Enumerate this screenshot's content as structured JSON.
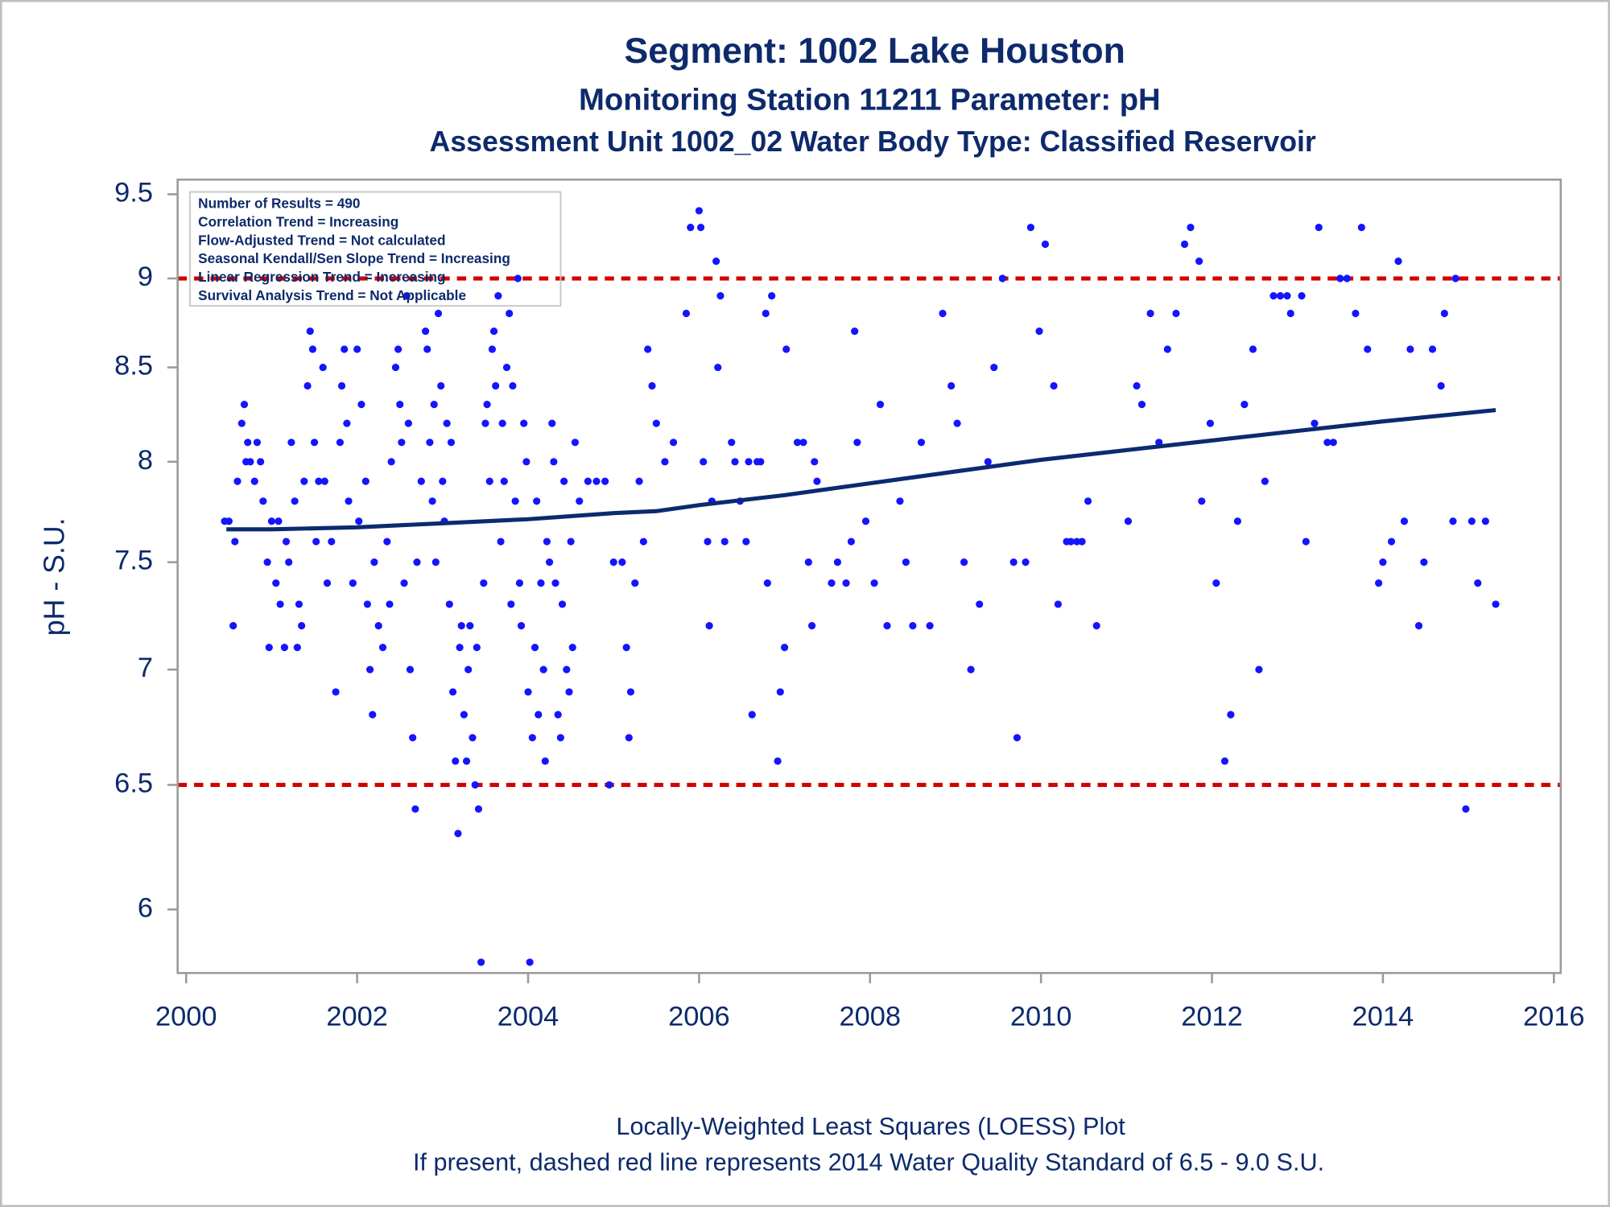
{
  "chart_data": {
    "type": "scatter",
    "title": "Segment: 1002  Lake Houston",
    "subtitle": "Monitoring Station 11211 Parameter: pH",
    "subtitle2": "Assessment Unit 1002_02   Water Body Type: Classified Reservoir",
    "y_label": "pH - S.U.",
    "footnotes": [
      "Locally-Weighted Least Squares (LOESS) Plot",
      "If present, dashed red line represents 2014 Water Quality Standard of 6.5 - 9.0 S.U."
    ],
    "annotations": [
      "Number of Results = 490",
      "Correlation Trend = Increasing",
      "Flow-Adjusted Trend = Not calculated",
      "Seasonal Kendall/Sen Slope Trend = Increasing",
      "Linear Regression Trend = Increasing",
      "Survival Analysis Trend = Not Applicable"
    ],
    "ylog": true,
    "xlim": [
      1999.9,
      2016.08
    ],
    "xticks": [
      2000,
      2002,
      2004,
      2006,
      2008,
      2010,
      2012,
      2014,
      2016
    ],
    "ylim": [
      5.76,
      9.59
    ],
    "yticks": [
      6,
      6.5,
      7,
      7.5,
      8,
      8.5,
      9,
      9.5
    ],
    "color": "#1414ff",
    "x": [
      2000.45,
      2000.5,
      2000.55,
      2000.57,
      2000.6,
      2000.65,
      2000.68,
      2000.7,
      2000.72,
      2000.75,
      2000.8,
      2000.83,
      2000.87,
      2000.9,
      2000.95,
      2000.97,
      2001.0,
      2001.05,
      2001.08,
      2001.1,
      2001.15,
      2001.17,
      2001.2,
      2001.23,
      2001.27,
      2001.3,
      2001.32,
      2001.35,
      2001.38,
      2001.42,
      2001.45,
      2001.48,
      2001.5,
      2001.52,
      2001.55,
      2001.6,
      2001.62,
      2001.65,
      2001.7,
      2001.75,
      2001.8,
      2001.82,
      2001.85,
      2001.88,
      2001.9,
      2001.95,
      2002.0,
      2002.02,
      2002.05,
      2002.1,
      2002.12,
      2002.15,
      2002.18,
      2002.2,
      2002.25,
      2002.3,
      2002.35,
      2002.38,
      2002.4,
      2002.45,
      2002.48,
      2002.5,
      2002.52,
      2002.55,
      2002.58,
      2002.6,
      2002.62,
      2002.65,
      2002.68,
      2002.7,
      2002.75,
      2002.8,
      2002.82,
      2002.85,
      2002.88,
      2002.9,
      2002.92,
      2002.95,
      2002.98,
      2003.0,
      2003.02,
      2003.05,
      2003.08,
      2003.1,
      2003.12,
      2003.15,
      2003.18,
      2003.2,
      2003.22,
      2003.25,
      2003.28,
      2003.3,
      2003.32,
      2003.35,
      2003.38,
      2003.4,
      2003.42,
      2003.45,
      2003.48,
      2003.5,
      2003.52,
      2003.55,
      2003.58,
      2003.6,
      2003.62,
      2003.65,
      2003.68,
      2003.7,
      2003.72,
      2003.75,
      2003.78,
      2003.8,
      2003.82,
      2003.85,
      2003.88,
      2003.9,
      2003.92,
      2003.95,
      2003.98,
      2004.0,
      2004.02,
      2004.05,
      2004.08,
      2004.1,
      2004.12,
      2004.15,
      2004.18,
      2004.2,
      2004.22,
      2004.25,
      2004.28,
      2004.3,
      2004.32,
      2004.35,
      2004.38,
      2004.4,
      2004.42,
      2004.45,
      2004.48,
      2004.5,
      2004.52,
      2004.55,
      2004.6,
      2004.7,
      2004.8,
      2004.9,
      2004.95,
      2005.0,
      2005.1,
      2005.15,
      2005.18,
      2005.2,
      2005.25,
      2005.3,
      2005.35,
      2005.4,
      2005.45,
      2005.5,
      2005.6,
      2005.7,
      2005.85,
      2005.9,
      2006.0,
      2006.02,
      2006.05,
      2006.1,
      2006.12,
      2006.15,
      2006.2,
      2006.22,
      2006.25,
      2006.3,
      2006.38,
      2006.42,
      2006.48,
      2006.55,
      2006.58,
      2006.62,
      2006.68,
      2006.72,
      2006.78,
      2006.8,
      2006.85,
      2006.92,
      2006.95,
      2007.0,
      2007.02,
      2007.15,
      2007.22,
      2007.28,
      2007.32,
      2007.35,
      2007.38,
      2007.55,
      2007.62,
      2007.72,
      2007.78,
      2007.82,
      2007.85,
      2007.95,
      2008.05,
      2008.12,
      2008.2,
      2008.35,
      2008.42,
      2008.5,
      2008.6,
      2008.7,
      2008.85,
      2008.95,
      2009.02,
      2009.1,
      2009.18,
      2009.28,
      2009.38,
      2009.45,
      2009.55,
      2009.68,
      2009.72,
      2009.82,
      2009.88,
      2009.98,
      2010.05,
      2010.15,
      2010.2,
      2010.3,
      2010.35,
      2010.42,
      2010.48,
      2010.55,
      2010.65,
      2011.02,
      2011.12,
      2011.18,
      2011.28,
      2011.38,
      2011.48,
      2011.58,
      2011.68,
      2011.75,
      2011.85,
      2011.88,
      2011.98,
      2012.05,
      2012.15,
      2012.22,
      2012.3,
      2012.38,
      2012.48,
      2012.55,
      2012.62,
      2012.72,
      2012.8,
      2012.88,
      2012.92,
      2013.05,
      2013.1,
      2013.2,
      2013.25,
      2013.35,
      2013.42,
      2013.5,
      2013.58,
      2013.68,
      2013.75,
      2013.82,
      2013.95,
      2014.0,
      2014.1,
      2014.18,
      2014.25,
      2014.32,
      2014.42,
      2014.48,
      2014.58,
      2014.68,
      2014.72,
      2014.82,
      2014.85,
      2014.97,
      2015.04,
      2015.11,
      2015.2,
      2015.32
    ],
    "values": [
      7.7,
      7.7,
      7.2,
      7.6,
      7.9,
      8.2,
      8.3,
      8.0,
      8.1,
      8.0,
      7.9,
      8.1,
      8.0,
      7.8,
      7.5,
      7.1,
      7.7,
      7.4,
      7.7,
      7.3,
      7.1,
      7.6,
      7.5,
      8.1,
      7.8,
      7.1,
      7.3,
      7.2,
      7.9,
      8.4,
      8.7,
      8.6,
      8.1,
      7.6,
      7.9,
      8.5,
      7.9,
      7.4,
      7.6,
      6.9,
      8.1,
      8.4,
      8.6,
      8.2,
      7.8,
      7.4,
      8.6,
      7.7,
      8.3,
      7.9,
      7.3,
      7.0,
      6.8,
      7.5,
      7.2,
      7.1,
      7.6,
      7.3,
      8.0,
      8.5,
      8.6,
      8.3,
      8.1,
      7.4,
      8.9,
      8.2,
      7.0,
      6.7,
      6.4,
      7.5,
      7.9,
      8.7,
      8.6,
      8.1,
      7.8,
      8.3,
      7.5,
      8.8,
      8.4,
      7.9,
      7.7,
      8.2,
      7.3,
      8.1,
      6.9,
      6.6,
      6.3,
      7.1,
      7.2,
      6.8,
      6.6,
      7.0,
      7.2,
      6.7,
      6.5,
      7.1,
      6.4,
      5.8,
      7.4,
      8.2,
      8.3,
      7.9,
      8.6,
      8.7,
      8.4,
      8.9,
      7.6,
      8.2,
      7.9,
      8.5,
      8.8,
      7.3,
      8.4,
      7.8,
      9.0,
      7.4,
      7.2,
      8.2,
      8.0,
      6.9,
      5.8,
      6.7,
      7.1,
      7.8,
      6.8,
      7.4,
      7.0,
      6.6,
      7.6,
      7.5,
      8.2,
      8.0,
      7.4,
      6.8,
      6.7,
      7.3,
      7.9,
      7.0,
      6.9,
      7.6,
      7.1,
      8.1,
      7.8,
      7.9,
      7.9,
      7.9,
      6.5,
      7.5,
      7.5,
      7.1,
      6.7,
      6.9,
      7.4,
      7.9,
      7.6,
      8.6,
      8.4,
      8.2,
      8.0,
      8.1,
      8.8,
      9.3,
      9.4,
      9.3,
      8.0,
      7.6,
      7.2,
      7.8,
      9.1,
      8.5,
      8.9,
      7.6,
      8.1,
      8.0,
      7.8,
      7.6,
      8.0,
      6.8,
      8.0,
      8.0,
      8.8,
      7.4,
      8.9,
      6.6,
      6.9,
      7.1,
      8.6,
      8.1,
      8.1,
      7.5,
      7.2,
      8.0,
      7.9,
      7.4,
      7.5,
      7.4,
      7.6,
      8.7,
      8.1,
      7.7,
      7.4,
      8.3,
      7.2,
      7.8,
      7.5,
      7.2,
      8.1,
      7.2,
      8.8,
      8.4,
      8.2,
      7.5,
      7.0,
      7.3,
      8.0,
      8.5,
      9.0,
      7.5,
      6.7,
      7.5,
      9.3,
      8.7,
      9.2,
      8.4,
      7.3,
      7.6,
      7.6,
      7.6,
      7.6,
      7.8,
      7.2,
      7.7,
      8.4,
      8.3,
      8.8,
      8.1,
      8.6,
      8.8,
      9.2,
      9.3,
      9.1,
      7.8,
      8.2,
      7.4,
      6.6,
      6.8,
      7.7,
      8.3,
      8.6,
      7.0,
      7.9,
      8.9,
      8.9,
      8.9,
      8.8,
      8.9,
      7.6,
      8.2,
      9.3,
      8.1,
      8.1,
      9.0,
      9.0,
      8.8,
      9.3,
      8.6,
      7.4,
      7.5,
      7.6,
      9.1,
      7.7,
      8.6,
      7.2,
      7.5,
      8.6,
      8.4,
      8.8,
      7.7,
      9.0,
      6.4,
      7.7,
      7.4,
      7.7,
      7.3
    ],
    "line": {
      "color": "#0b2a6f",
      "x": [
        2000.47,
        2001,
        2002,
        2003,
        2004,
        2005,
        2005.5,
        2006,
        2007,
        2008,
        2009,
        2010,
        2011,
        2012,
        2013,
        2014,
        2015.32
      ],
      "values": [
        7.66,
        7.66,
        7.67,
        7.69,
        7.71,
        7.74,
        7.75,
        7.78,
        7.83,
        7.89,
        7.95,
        8.01,
        8.06,
        8.11,
        8.16,
        8.21,
        8.27
      ]
    },
    "reference_lines": [
      {
        "value": 9,
        "color": "#d40000"
      },
      {
        "value": 6.5,
        "color": "#d40000"
      }
    ]
  }
}
